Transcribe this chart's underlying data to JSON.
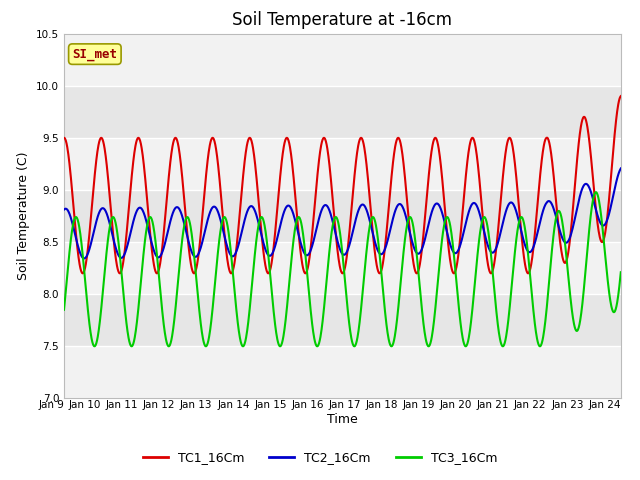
{
  "title": "Soil Temperature at -16cm",
  "xlabel": "Time",
  "ylabel": "Soil Temperature (C)",
  "ylim": [
    7.0,
    10.5
  ],
  "xlim": [
    0,
    15
  ],
  "background_color": "#ffffff",
  "plot_bg_color": "#e8e8e8",
  "band_color_light": "#f0f0f0",
  "band_color_dark": "#e0e0e0",
  "grid_color": "#ffffff",
  "TC1_color": "#dd0000",
  "TC2_color": "#0000cc",
  "TC3_color": "#00cc00",
  "linewidth": 1.5,
  "annotation_text": "SI_met",
  "annotation_text_color": "#990000",
  "annotation_bg": "#ffff99",
  "annotation_border": "#999900",
  "tick_labels": [
    "Jan 9",
    "Jan 10",
    "Jan 11",
    "Jan 12",
    "Jan 13",
    "Jan 14",
    "Jan 15",
    "Jan 16",
    "Jan 17",
    "Jan 18",
    "Jan 19",
    "Jan 20",
    "Jan 21",
    "Jan 22",
    "Jan 23",
    "Jan 24"
  ],
  "yticks": [
    7.0,
    7.5,
    8.0,
    8.5,
    9.0,
    9.5,
    10.0,
    10.5
  ],
  "title_fontsize": 12,
  "label_fontsize": 9,
  "tick_fontsize": 7.5,
  "legend_fontsize": 9,
  "legend_labels": [
    "TC1_16Cm",
    "TC2_16Cm",
    "TC3_16Cm"
  ]
}
